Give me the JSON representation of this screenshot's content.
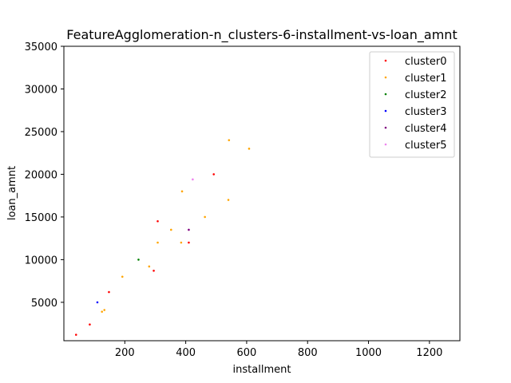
{
  "chart_data": {
    "type": "scatter",
    "title": "FeatureAgglomeration-n_clusters-6-installment-vs-loan_amnt",
    "xlabel": "installment",
    "ylabel": "loan_amnt",
    "xlim": [
      0,
      1300
    ],
    "ylim": [
      500,
      35000
    ],
    "xticks": [
      200,
      400,
      600,
      800,
      1000,
      1200
    ],
    "yticks": [
      5000,
      10000,
      15000,
      20000,
      25000,
      30000,
      35000
    ],
    "legend_position": "top-right",
    "grid": false,
    "series": [
      {
        "name": "cluster0",
        "color": "#ff0000",
        "points": [
          [
            40,
            1200
          ],
          [
            85,
            2400
          ],
          [
            148,
            6200
          ],
          [
            295,
            8700
          ],
          [
            308,
            14500
          ],
          [
            410,
            12000
          ],
          [
            492,
            20000
          ]
        ]
      },
      {
        "name": "cluster1",
        "color": "#ffa500",
        "points": [
          [
            125,
            3900
          ],
          [
            133,
            4100
          ],
          [
            192,
            8000
          ],
          [
            280,
            9200
          ],
          [
            308,
            12000
          ],
          [
            352,
            13500
          ],
          [
            385,
            12000
          ],
          [
            388,
            18000
          ],
          [
            463,
            15000
          ],
          [
            540,
            17000
          ],
          [
            542,
            24000
          ],
          [
            608,
            23000
          ]
        ]
      },
      {
        "name": "cluster2",
        "color": "#008000",
        "points": [
          [
            245,
            10000
          ]
        ]
      },
      {
        "name": "cluster3",
        "color": "#0000ff",
        "points": [
          [
            110,
            5000
          ]
        ]
      },
      {
        "name": "cluster4",
        "color": "#800080",
        "points": [
          [
            410,
            13500
          ]
        ]
      },
      {
        "name": "cluster5",
        "color": "#ee82ee",
        "points": [
          [
            423,
            19400
          ]
        ]
      }
    ]
  }
}
